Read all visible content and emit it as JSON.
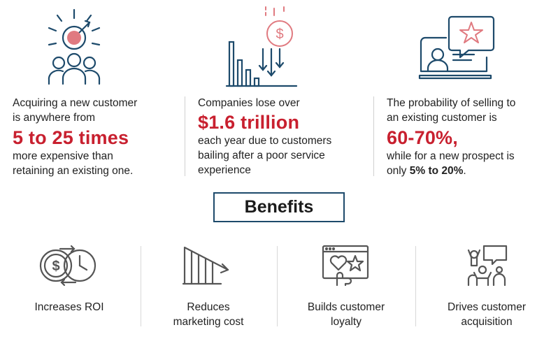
{
  "stats": [
    {
      "line1": "Acquiring a new customer",
      "line2": "is anywhere from",
      "highlight": "5 to 25 times",
      "line3": "more expensive than",
      "line4": "retaining an existing one."
    },
    {
      "line1": "Companies lose over",
      "highlight": "$1.6 trillion",
      "line2": "each year due to customers",
      "line3": "bailing after a poor service",
      "line4": "experience"
    },
    {
      "line1": "The probability of selling to",
      "line2": "an existing customer is",
      "highlight": "60-70%,",
      "line3": "while for a new prospect is",
      "line4_prefix": "only ",
      "line4_bold": "5% to 20%",
      "line4_suffix": "."
    }
  ],
  "benefits_title": "Benefits",
  "benefits": [
    {
      "line1": "Increases ROI",
      "icon": "roi-money-clock-icon"
    },
    {
      "line1": "Reduces",
      "line2": "marketing cost",
      "icon": "declining-bars-icon"
    },
    {
      "line1": "Builds customer",
      "line2": "loyalty",
      "icon": "loyalty-heart-star-icon"
    },
    {
      "line1": "Drives customer",
      "line2": "acquisition",
      "icon": "people-acquisition-icon"
    }
  ],
  "colors": {
    "accent_red": "#c8202f",
    "icon_navy": "#1d4a6b",
    "icon_pink": "#e07a80",
    "icon_gray": "#555555"
  }
}
